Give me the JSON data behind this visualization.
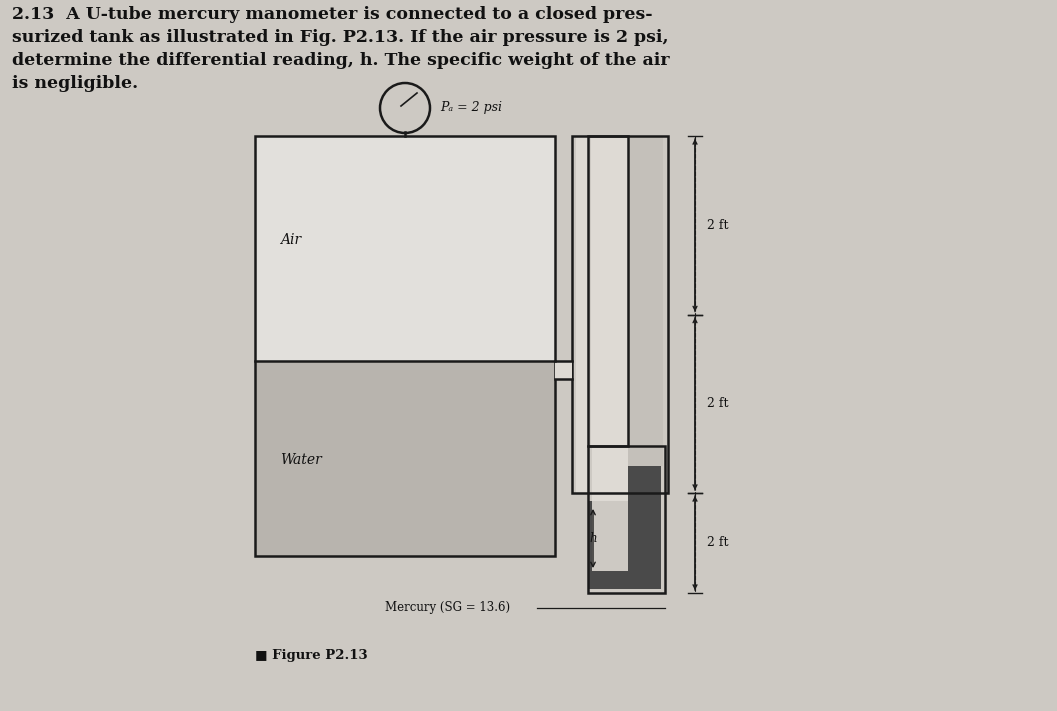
{
  "bg_color": "#cdc9c3",
  "title_text": "2.13  A U-tube mercury manometer is connected to a closed pres-\nsurized tank as illustrated in Fig. P2.13. If the air pressure is 2 psi,\ndetermine the differential reading, h. The specific weight of the air\nis negligible.",
  "figure_label": "■ Figure P2.13",
  "gauge_label": "Pₐ = 2 psi",
  "air_label": "Air",
  "water_label": "Water",
  "mercury_label": "Mercury (SG = 13.6)",
  "dim1": "2 ft",
  "dim2": "2 ft",
  "dim3": "2 ft",
  "h_label": "h",
  "tank_fill_air": "#e2e0dc",
  "tank_fill_water": "#b8b4ae",
  "utube_fill_water_inner": "#dedad4",
  "utube_fill_water_right": "#c4c0ba",
  "mercury_fill": "#4a4a4a",
  "line_color": "#1a1a1a",
  "text_color": "#111111",
  "lw_main": 1.8
}
